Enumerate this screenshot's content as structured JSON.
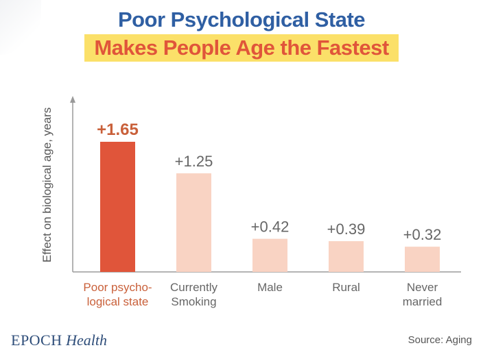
{
  "header": {
    "title_line1": "Poor Psychological State",
    "title_line2": "Makes People Age the Fastest"
  },
  "footer": {
    "brand": "EPOCH",
    "brand_suffix": "Health",
    "source": "Source: Aging"
  },
  "colors": {
    "highlight_bar": "#e0553a",
    "highlight_text": "#c9603a",
    "normal_bar": "#f9d3c3",
    "normal_text": "#666666",
    "title_blue": "#2f5fa3",
    "title_orange": "#e0553a",
    "title_band": "#fbe069"
  },
  "chart_data": {
    "type": "bar",
    "categories": [
      [
        "Poor psycho-",
        "logical state"
      ],
      [
        "Currently",
        "Smoking"
      ],
      [
        "Male"
      ],
      [
        "Rural"
      ],
      [
        "Never",
        "married"
      ]
    ],
    "values": [
      1.65,
      1.25,
      0.42,
      0.39,
      0.32
    ],
    "value_labels": [
      "+1.65",
      "+1.25",
      "+0.42",
      "+0.39",
      "+0.32"
    ],
    "highlight_index": 0,
    "ylabel": "Effect on biological age, years",
    "ylim": [
      0,
      1.65
    ],
    "grid": false,
    "legend": "none"
  }
}
